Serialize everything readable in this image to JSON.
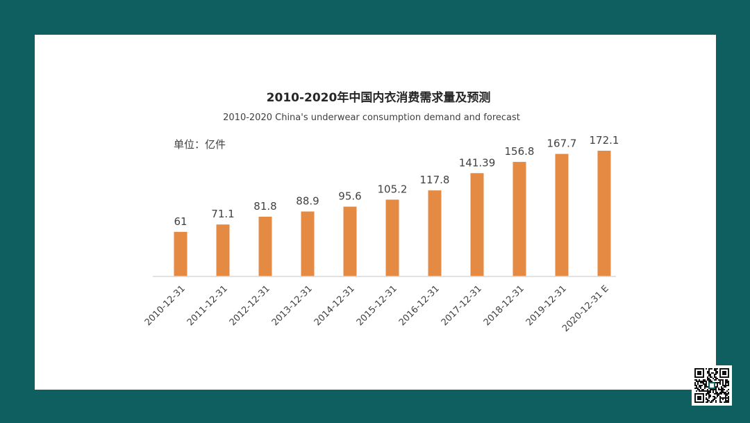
{
  "colors": {
    "frame": "#0f5f60",
    "bar": "#e58a43",
    "axis": "#d9d9d9",
    "text": "#404040"
  },
  "chart_data": {
    "type": "bar",
    "title": "2010-2020年中国内衣消费需求量及预测",
    "subtitle": "2010-2020 China's underwear consumption demand and forecast",
    "unit_label": "单位：亿件",
    "categories": [
      "2010-12-31",
      "2011-12-31",
      "2012-12-31",
      "2013-12-31",
      "2014-12-31",
      "2015-12-31",
      "2016-12-31",
      "2017-12-31",
      "2018-12-31",
      "2019-12-31",
      "2020-12-31 E"
    ],
    "values": [
      61,
      71.1,
      81.8,
      88.9,
      95.6,
      105.2,
      117.8,
      141.39,
      156.8,
      167.7,
      172.1
    ],
    "data_labels": [
      "61",
      "71.1",
      "81.8",
      "88.9",
      "95.6",
      "105.2",
      "117.8",
      "141.39",
      "156.8",
      "167.7",
      "172.1"
    ],
    "ylim": [
      0,
      172.1
    ],
    "grid": false,
    "legend": "none"
  },
  "qr_icon": "qr-code-icon"
}
